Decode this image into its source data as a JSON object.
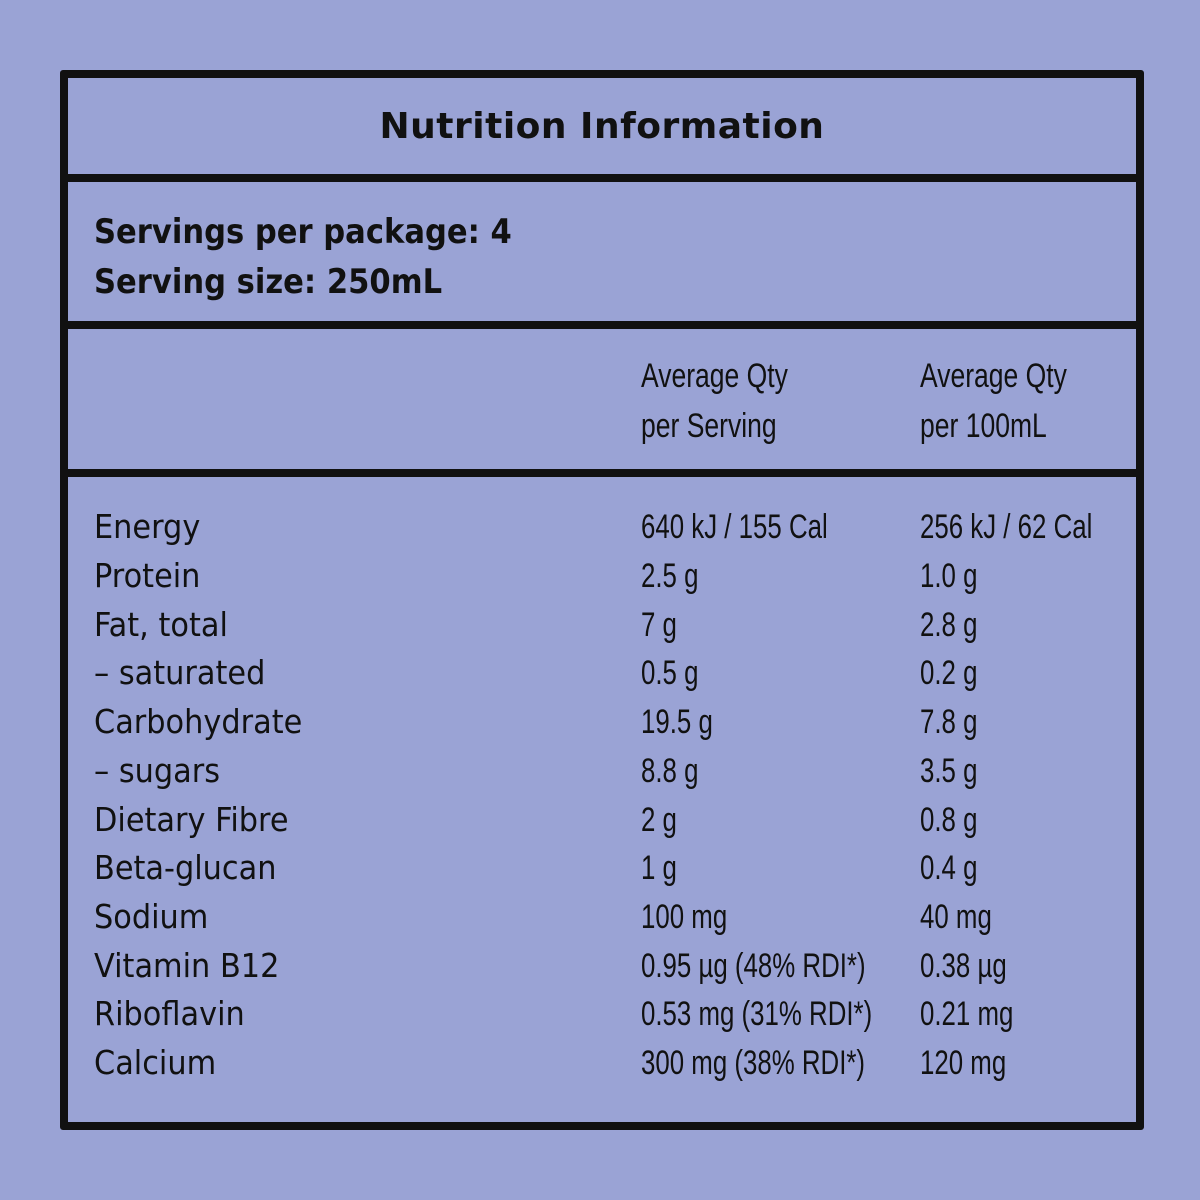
{
  "panel": {
    "title": "Nutrition Information",
    "servings_per_package": "Servings per package: 4",
    "serving_size": "Serving size: 250mL"
  },
  "columns": {
    "per_serving_line1": "Average Qty",
    "per_serving_line2": "per Serving",
    "per_100ml_line1": "Average Qty",
    "per_100ml_line2": "per 100mL"
  },
  "rows": [
    {
      "label": "Energy",
      "per_serving": "640 kJ / 155 Cal",
      "per_100ml": "256 kJ / 62 Cal"
    },
    {
      "label": "Protein",
      "per_serving": "2.5 g",
      "per_100ml": "1.0 g"
    },
    {
      "label": "Fat, total",
      "per_serving": "7 g",
      "per_100ml": "2.8 g"
    },
    {
      "label": "– saturated",
      "per_serving": "0.5 g",
      "per_100ml": "0.2 g"
    },
    {
      "label": "Carbohydrate",
      "per_serving": "19.5 g",
      "per_100ml": "7.8 g"
    },
    {
      "label": "– sugars",
      "per_serving": "8.8 g",
      "per_100ml": "3.5 g"
    },
    {
      "label": "Dietary Fibre",
      "per_serving": "2 g",
      "per_100ml": "0.8 g"
    },
    {
      "label": "Beta-glucan",
      "per_serving": "1 g",
      "per_100ml": "0.4 g"
    },
    {
      "label": "Sodium",
      "per_serving": "100 mg",
      "per_100ml": "40 mg"
    },
    {
      "label": "Vitamin B12",
      "per_serving": "0.95 µg  (48% RDI*)",
      "per_100ml": "0.38 µg"
    },
    {
      "label": "Riboflavin",
      "per_serving": "0.53 mg  (31% RDI*)",
      "per_100ml": "0.21 mg"
    },
    {
      "label": "Calcium",
      "per_serving": "300 mg  (38% RDI*)",
      "per_100ml": "120 mg"
    }
  ],
  "colors": {
    "background": "#9aa3d5",
    "ink": "#111111"
  }
}
